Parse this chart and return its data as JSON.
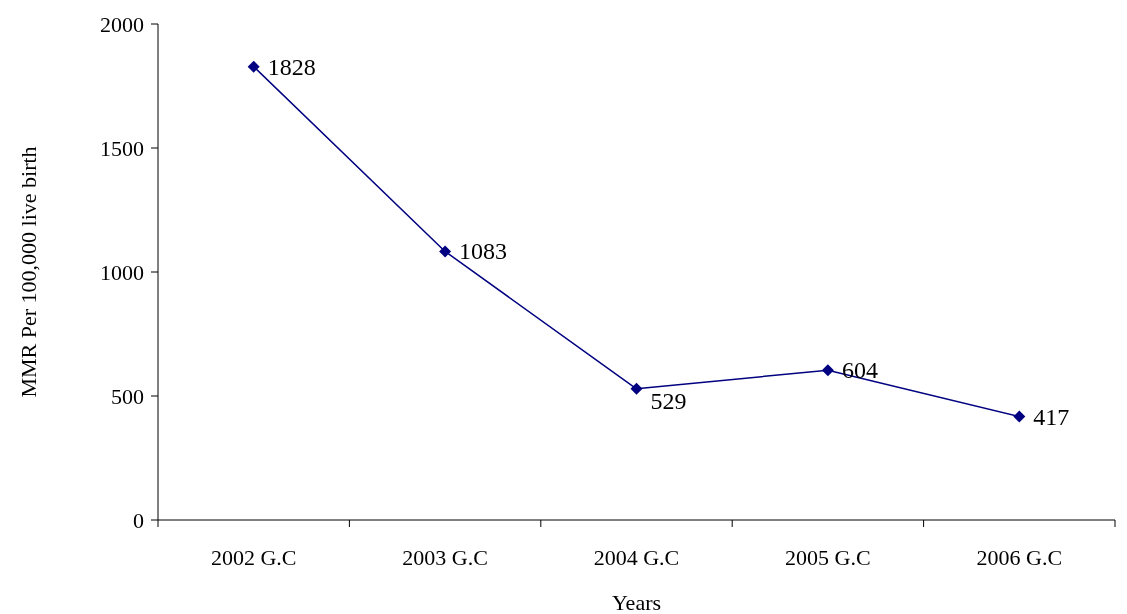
{
  "chart_data": {
    "type": "line",
    "xlabel": "Years",
    "ylabel": "MMR Per 100,000 live birth",
    "categories": [
      "2002 G.C",
      "2003 G.C",
      "2004 G.C",
      "2005 G.C",
      "2006 G.C"
    ],
    "series": [
      {
        "color": "#000080",
        "values": [
          1828,
          1083,
          529,
          604,
          417
        ]
      }
    ],
    "ylim": [
      0,
      2000
    ],
    "yticks": [
      0,
      500,
      1000,
      1500,
      2000
    ],
    "grid": false,
    "marker": "diamond",
    "line_style": "solid",
    "data_labels": true
  }
}
